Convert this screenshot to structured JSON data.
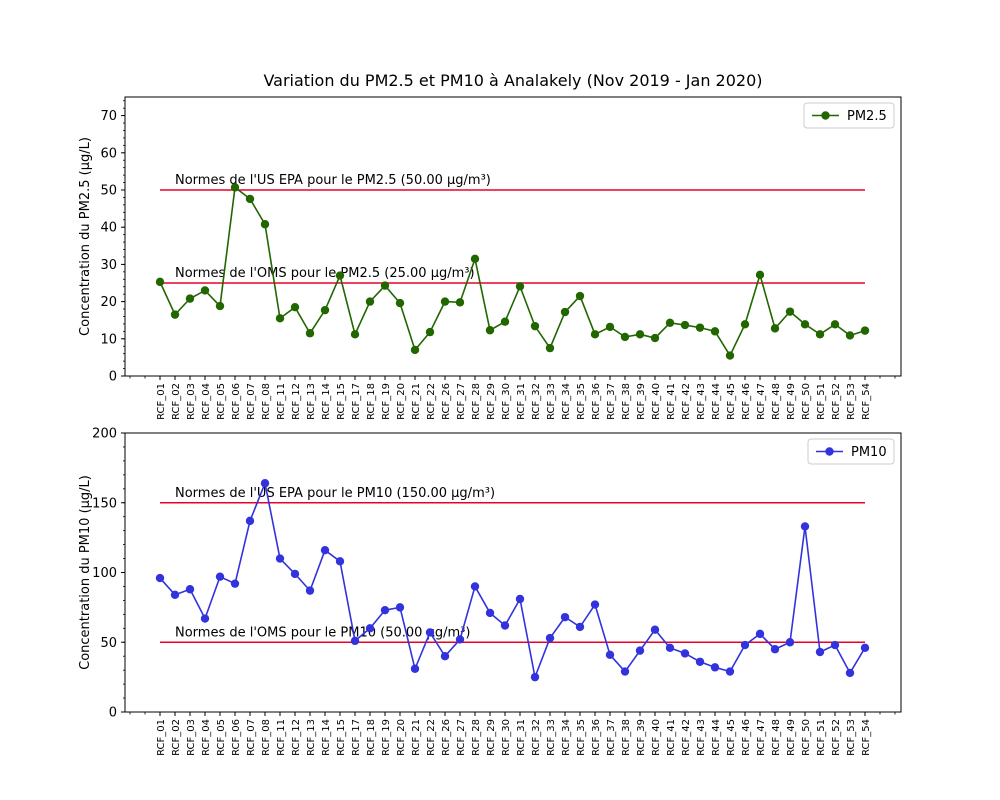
{
  "figure": {
    "title": "Variation du PM2.5 et PM10 à Analakely (Nov 2019 - Jan 2020)"
  },
  "chart_data": [
    {
      "type": "line",
      "categories": [
        "RCF_01",
        "RCF_02",
        "RCF_03",
        "RCF_04",
        "RCF_05",
        "RCF_06",
        "RCF_07",
        "RCF_08",
        "RCF_11",
        "RCF_12",
        "RCF_13",
        "RCF_14",
        "RCF_15",
        "RCF_17",
        "RCF_18",
        "RCF_19",
        "RCF_20",
        "RCF_21",
        "RCF_22",
        "RCF_26",
        "RCF_27",
        "RCF_28",
        "RCF_29",
        "RCF_30",
        "RCF_31",
        "RCF_32",
        "RCF_33",
        "RCF_34",
        "RCF_35",
        "RCF_36",
        "RCF_37",
        "RCF_38",
        "RCF_39",
        "RCF_40",
        "RCF_41",
        "RCF_42",
        "RCF_43",
        "RCF_44",
        "RCF_45",
        "RCF_46",
        "RCF_47",
        "RCF_48",
        "RCF_49",
        "RCF_50",
        "RCF_51",
        "RCF_52",
        "RCF_53",
        "RCF_54"
      ],
      "series": [
        {
          "name": "PM2.5",
          "color": "#226600",
          "marker": "circle",
          "values": [
            25.3,
            16.5,
            20.8,
            23.0,
            18.8,
            50.7,
            47.6,
            40.8,
            15.5,
            18.5,
            11.5,
            17.7,
            27.0,
            11.2,
            20.0,
            24.3,
            19.6,
            7.0,
            11.8,
            20.0,
            19.8,
            31.5,
            12.3,
            14.6,
            24.1,
            13.4,
            7.5,
            17.2,
            21.5,
            11.2,
            13.2,
            10.5,
            11.2,
            10.2,
            14.3,
            13.7,
            13.0,
            12.0,
            5.5,
            13.9,
            27.2,
            12.8,
            17.3,
            13.9,
            11.2,
            13.9,
            10.9,
            12.2
          ]
        }
      ],
      "reference_lines": [
        {
          "value": 50,
          "color": "#e8002a",
          "label": "Normes de l'US EPA pour le PM2.5 (50.00 µg/m³)"
        },
        {
          "value": 25,
          "color": "#e8002a",
          "label": "Normes de l'OMS pour le PM2.5 (25.00 µg/m³)"
        }
      ],
      "ylabel": "Concentration du PM2.5 (µg/L)",
      "xlabel": "",
      "ylim": [
        0,
        75
      ],
      "yticks": [
        0,
        10,
        20,
        30,
        40,
        50,
        60,
        70
      ],
      "grid": false,
      "legend_position": "top-right"
    },
    {
      "type": "line",
      "categories": [
        "RCF_01",
        "RCF_02",
        "RCF_03",
        "RCF_04",
        "RCF_05",
        "RCF_06",
        "RCF_07",
        "RCF_08",
        "RCF_11",
        "RCF_12",
        "RCF_13",
        "RCF_14",
        "RCF_15",
        "RCF_17",
        "RCF_18",
        "RCF_19",
        "RCF_20",
        "RCF_21",
        "RCF_22",
        "RCF_26",
        "RCF_27",
        "RCF_28",
        "RCF_29",
        "RCF_30",
        "RCF_31",
        "RCF_32",
        "RCF_33",
        "RCF_34",
        "RCF_35",
        "RCF_36",
        "RCF_37",
        "RCF_38",
        "RCF_39",
        "RCF_40",
        "RCF_41",
        "RCF_42",
        "RCF_43",
        "RCF_44",
        "RCF_45",
        "RCF_46",
        "RCF_47",
        "RCF_48",
        "RCF_49",
        "RCF_50",
        "RCF_51",
        "RCF_52",
        "RCF_53",
        "RCF_54"
      ],
      "series": [
        {
          "name": "PM10",
          "color": "#3333dd",
          "marker": "circle",
          "values": [
            96,
            84,
            88,
            67,
            97,
            92,
            137,
            164,
            110,
            99,
            87,
            116,
            108,
            51,
            60,
            73,
            75,
            31,
            57,
            40,
            52,
            90,
            71,
            62,
            81,
            25,
            53,
            68,
            61,
            77,
            41,
            29,
            44,
            59,
            46,
            42,
            36,
            32,
            29,
            48,
            56,
            45,
            50,
            133,
            43,
            48,
            28,
            46
          ]
        }
      ],
      "reference_lines": [
        {
          "value": 150,
          "color": "#e8002a",
          "label": "Normes de l'US EPA pour le PM10 (150.00 µg/m³)"
        },
        {
          "value": 50,
          "color": "#e8002a",
          "label": "Normes de l'OMS pour le PM10 (50.00 µg/m³)"
        }
      ],
      "ylabel": "Concentration du PM10 (µg/L)",
      "xlabel": "",
      "ylim": [
        0,
        200
      ],
      "yticks": [
        0,
        50,
        100,
        150,
        200
      ],
      "grid": false,
      "legend_position": "top-right"
    }
  ]
}
